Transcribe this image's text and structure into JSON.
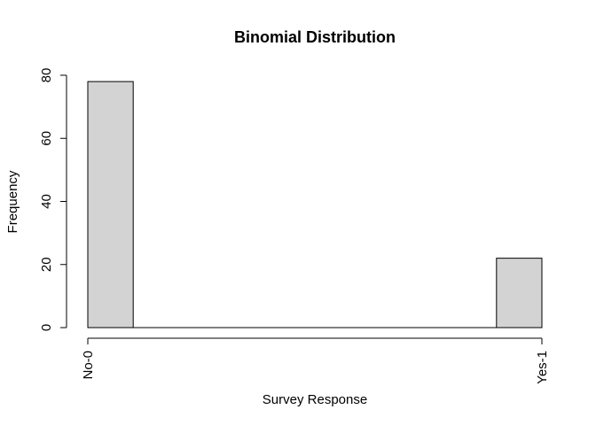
{
  "chart_data": {
    "type": "bar",
    "title": "Binomial Distribution",
    "xlabel": "Survey Response",
    "ylabel": "Frequency",
    "x_axis_ticks": [
      "No-0",
      "Yes-1"
    ],
    "y_axis_ticks": [
      "0",
      "20",
      "40",
      "60",
      "80"
    ],
    "ylim": [
      0,
      80
    ],
    "xlim": [
      0,
      1
    ],
    "bins": [
      {
        "from": 0.0,
        "to": 0.1,
        "value": 78
      },
      {
        "from": 0.1,
        "to": 0.2,
        "value": 0
      },
      {
        "from": 0.2,
        "to": 0.3,
        "value": 0
      },
      {
        "from": 0.3,
        "to": 0.4,
        "value": 0
      },
      {
        "from": 0.4,
        "to": 0.5,
        "value": 0
      },
      {
        "from": 0.5,
        "to": 0.6,
        "value": 0
      },
      {
        "from": 0.6,
        "to": 0.7,
        "value": 0
      },
      {
        "from": 0.7,
        "to": 0.8,
        "value": 0
      },
      {
        "from": 0.8,
        "to": 0.9,
        "value": 0
      },
      {
        "from": 0.9,
        "to": 1.0,
        "value": 22
      }
    ],
    "bar_fill": "#d3d3d3",
    "bar_stroke": "#000000",
    "grid": false,
    "legend": "none"
  }
}
